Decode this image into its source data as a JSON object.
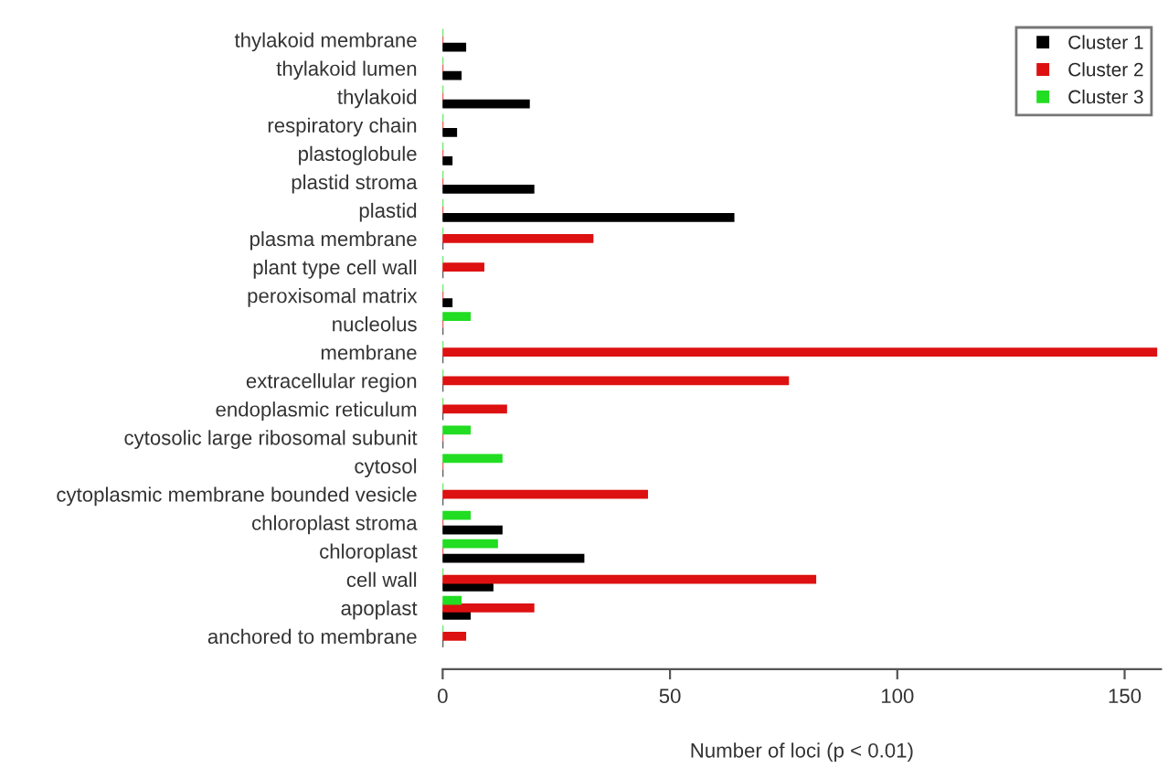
{
  "chart_data": {
    "type": "bar",
    "orientation": "horizontal",
    "xlabel": "Number of loci (p < 0.01)",
    "categories": [
      "thylakoid membrane",
      "thylakoid lumen",
      "thylakoid",
      "respiratory chain",
      "plastoglobule",
      "plastid stroma",
      "plastid",
      "plasma membrane",
      "plant type cell wall",
      "peroxisomal matrix",
      "nucleolus",
      "membrane",
      "extracellular region",
      "endoplasmic reticulum",
      "cytosolic large ribosomal subunit",
      "cytosol",
      "cytoplasmic membrane bounded vesicle",
      "chloroplast stroma",
      "chloroplast",
      "cell wall",
      "apoplast",
      "anchored to membrane"
    ],
    "series": [
      {
        "name": "Cluster 1",
        "color": "#000000",
        "values": [
          5,
          4,
          19,
          3,
          2,
          20,
          64,
          0,
          0,
          2,
          0,
          0,
          0,
          0,
          0,
          0,
          0,
          13,
          31,
          11,
          6,
          0
        ]
      },
      {
        "name": "Cluster 2",
        "color": "#dd1111",
        "values": [
          0,
          0,
          0,
          0,
          0,
          0,
          0,
          33,
          9,
          0,
          0,
          157,
          76,
          14,
          0,
          0,
          45,
          0,
          0,
          82,
          20,
          5
        ]
      },
      {
        "name": "Cluster 3",
        "color": "#22dd22",
        "values": [
          0,
          0,
          0,
          0,
          0,
          0,
          0,
          0,
          0,
          0,
          6,
          0,
          0,
          0,
          6,
          13,
          0,
          6,
          12,
          0,
          4,
          0
        ]
      }
    ],
    "xlim": [
      0,
      158
    ],
    "xticks": [
      0,
      50,
      100,
      150
    ],
    "legend": "top right",
    "grid": false
  }
}
